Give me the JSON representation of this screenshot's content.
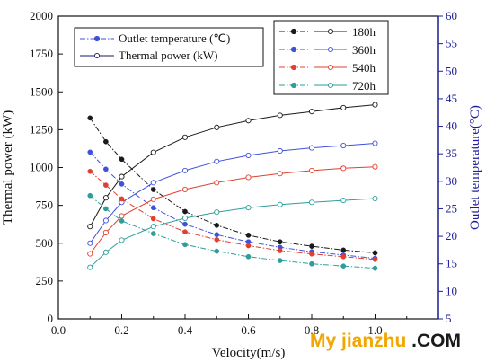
{
  "chart_data": {
    "type": "line",
    "xlabel": "Velocity(m/s)",
    "ylabel_left": "Thermal power (kW)",
    "ylabel_right": "Outlet temperature(°C)",
    "xlim": [
      0.0,
      1.2
    ],
    "ylim_left": [
      0,
      2000
    ],
    "ylim_right": [
      5,
      60
    ],
    "x_ticks": [
      "0.0",
      "0.2",
      "0.4",
      "0.6",
      "0.8",
      "1.0"
    ],
    "y_left_ticks": [
      "0",
      "250",
      "500",
      "750",
      "1000",
      "1250",
      "1500",
      "1750",
      "2000"
    ],
    "y_right_ticks": [
      "5",
      "10",
      "15",
      "20",
      "25",
      "30",
      "35",
      "40",
      "45",
      "50",
      "55",
      "60"
    ],
    "x": [
      0.1,
      0.15,
      0.2,
      0.3,
      0.4,
      0.5,
      0.6,
      0.7,
      0.8,
      0.9,
      1.0
    ],
    "legend_style": [
      {
        "label": "Outlet temperature (℃)"
      },
      {
        "label": "Thermal power (kW)"
      }
    ],
    "legend_times": [
      "180h",
      "360h",
      "540h",
      "720h"
    ],
    "series": [
      {
        "name": "180h",
        "color": "#1a1a1a",
        "thermal_power": [
          610,
          800,
          940,
          1100,
          1200,
          1265,
          1310,
          1345,
          1370,
          1395,
          1415
        ],
        "outlet_temperature": [
          41.5,
          37.2,
          34.0,
          28.5,
          24.5,
          22.0,
          20.2,
          19.0,
          18.2,
          17.5,
          17.0
        ]
      },
      {
        "name": "360h",
        "color": "#3f51d9",
        "thermal_power": [
          500,
          650,
          770,
          900,
          980,
          1040,
          1080,
          1110,
          1130,
          1145,
          1160
        ],
        "outlet_temperature": [
          35.3,
          32.2,
          29.5,
          25.2,
          22.2,
          20.3,
          19.0,
          18.0,
          17.2,
          16.6,
          16.0
        ]
      },
      {
        "name": "540h",
        "color": "#e0402f",
        "thermal_power": [
          430,
          570,
          680,
          790,
          855,
          900,
          935,
          960,
          980,
          995,
          1005
        ],
        "outlet_temperature": [
          31.8,
          29.3,
          26.8,
          23.2,
          20.8,
          19.4,
          18.3,
          17.4,
          16.8,
          16.3,
          15.8
        ]
      },
      {
        "name": "720h",
        "color": "#2e9e9a",
        "thermal_power": [
          340,
          440,
          520,
          610,
          665,
          705,
          735,
          755,
          770,
          783,
          795
        ],
        "outlet_temperature": [
          27.4,
          25.0,
          22.8,
          20.5,
          18.5,
          17.3,
          16.3,
          15.6,
          15.0,
          14.6,
          14.2
        ]
      }
    ]
  },
  "watermark": {
    "part1": "My jianzhu",
    "part2": " .COM"
  }
}
